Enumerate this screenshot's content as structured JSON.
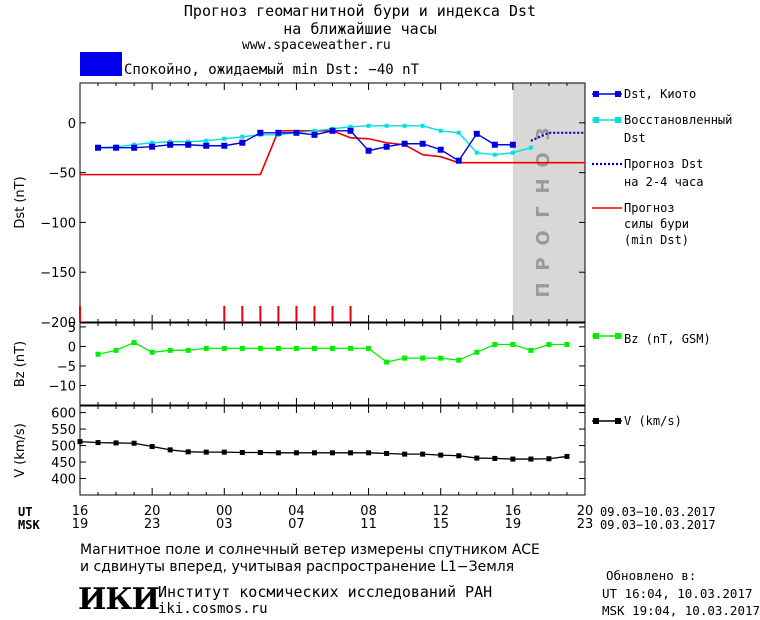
{
  "header": {
    "title_line1": "Прогноз геомагнитной бури и индекса Dst",
    "title_line2": "на ближайшие часы",
    "url": "www.spaceweather.ru",
    "status_text": "Спокойно, ожидаемый min Dst: −40 nT",
    "status_color": "#0000ee"
  },
  "legend": {
    "dst_kyoto": "Dst, Киото",
    "restored_1": "Восстановленный",
    "restored_2": "Dst",
    "forecast_1": "Прогноз Dst",
    "forecast_2": "на 2-4 часа",
    "storm_1": "Прогноз",
    "storm_2": "силы бури",
    "storm_3": "(min Dst)",
    "bz": "Bz (nT, GSM)",
    "v": "V (km/s)"
  },
  "forecast_band_label": "ПРОГНОЗ",
  "time_axis": {
    "ut_label": "UT",
    "msk_label": "MSK",
    "ut_ticks": [
      "16",
      "20",
      "00",
      "04",
      "08",
      "12",
      "16",
      "20"
    ],
    "msk_ticks": [
      "19",
      "23",
      "03",
      "07",
      "11",
      "15",
      "19",
      "23"
    ],
    "ut_range": "09.03−10.03.2017",
    "msk_range": "09.03−10.03.2017"
  },
  "footer": {
    "line1": "Магнитное поле и солнечный ветер измерены спутником ACE",
    "line2": "и сдвинуты вперед, учитывая распространение L1−Земля",
    "logo_text": "ИКИ",
    "institute": "Институт космических исследований РАН",
    "site": "iki.cosmos.ru",
    "updated_label": "Обновлено в:",
    "updated_ut": "UT   16:04, 10.03.2017",
    "updated_msk": "MSK 19:04, 10.03.2017"
  },
  "chart_data": [
    {
      "type": "line",
      "ylabel": "Dst (nT)",
      "ylim": [
        -200,
        40
      ],
      "yticks": [
        0,
        -50,
        -100,
        -150,
        -200
      ],
      "xlim": [
        0,
        28
      ],
      "x_unit": "hours since 16 UT 09.03.2017",
      "forecast_band": [
        24,
        28
      ],
      "series": [
        {
          "name": "Dst, Киото",
          "color": "#0000dd",
          "x": [
            1,
            2,
            3,
            4,
            5,
            6,
            7,
            8,
            9,
            10,
            11,
            12,
            13,
            14,
            15,
            16,
            17,
            18,
            19,
            20,
            21,
            22,
            23,
            24
          ],
          "values": [
            -25,
            -25,
            -25,
            -24,
            -22,
            -22,
            -23,
            -23,
            -20,
            -10,
            -10,
            -10,
            -12,
            -8,
            -8,
            -28,
            -24,
            -21,
            -21,
            -27,
            -38,
            -11,
            -22,
            -22
          ]
        },
        {
          "name": "Восстановленный Dst",
          "color": "#00e0e0",
          "x": [
            1,
            2,
            3,
            4,
            5,
            6,
            7,
            8,
            9,
            10,
            11,
            12,
            13,
            14,
            15,
            16,
            17,
            18,
            19,
            20,
            21,
            22,
            23,
            24,
            25
          ],
          "values": [
            -25,
            -24,
            -22,
            -20,
            -19,
            -19,
            -18,
            -16,
            -14,
            -12,
            -12,
            -10,
            -8,
            -6,
            -4,
            -3,
            -3,
            -3,
            -3,
            -8,
            -10,
            -30,
            -32,
            -30,
            -25
          ]
        },
        {
          "name": "Прогноз Dst на 2-4 часа",
          "color": "#0000cc",
          "x": [
            25,
            26,
            27,
            28
          ],
          "values": [
            -18,
            -10,
            -10,
            -10
          ]
        },
        {
          "name": "Прогноз силы бури (min Dst)",
          "color": "#ee0000",
          "x": [
            0,
            10,
            11,
            11.5,
            14,
            15,
            16,
            17,
            18,
            19,
            20,
            21,
            22,
            28
          ],
          "values": [
            -52,
            -52,
            -8,
            -8,
            -8,
            -15,
            -16,
            -20,
            -22,
            -32,
            -34,
            -40,
            -40,
            -40
          ]
        }
      ],
      "storm_markers_x": [
        0,
        8,
        9,
        10,
        11,
        12,
        13,
        14,
        15
      ]
    },
    {
      "type": "line",
      "ylabel": "Bz (nT)",
      "ylim": [
        -15,
        6
      ],
      "yticks": [
        5,
        0,
        -5,
        -10
      ],
      "xlim": [
        0,
        28
      ],
      "series": [
        {
          "name": "Bz (nT, GSM)",
          "color": "#00ee00",
          "x": [
            1,
            2,
            3,
            4,
            5,
            6,
            7,
            8,
            9,
            10,
            11,
            12,
            13,
            14,
            15,
            16,
            17,
            18,
            19,
            20,
            21,
            22,
            23,
            24,
            25,
            26,
            27
          ],
          "values": [
            -2,
            -1,
            1,
            -1.5,
            -1,
            -1,
            -0.5,
            -0.5,
            -0.5,
            -0.5,
            -0.5,
            -0.5,
            -0.5,
            -0.5,
            -0.5,
            -0.5,
            -4,
            -3,
            -3,
            -3,
            -3.5,
            -1.5,
            0.5,
            0.5,
            -1,
            0.5,
            0.5
          ]
        }
      ]
    },
    {
      "type": "line",
      "ylabel": "V (km/s)",
      "ylim": [
        350,
        620
      ],
      "yticks": [
        600,
        550,
        500,
        450,
        400
      ],
      "xlim": [
        0,
        28
      ],
      "series": [
        {
          "name": "V (km/s)",
          "color": "#000000",
          "x": [
            0,
            1,
            2,
            3,
            4,
            5,
            6,
            7,
            8,
            9,
            10,
            11,
            12,
            13,
            14,
            15,
            16,
            17,
            18,
            19,
            20,
            21,
            22,
            23,
            24,
            25,
            26,
            27
          ],
          "values": [
            512,
            509,
            508,
            507,
            497,
            487,
            481,
            480,
            480,
            479,
            479,
            478,
            478,
            478,
            478,
            478,
            478,
            476,
            474,
            474,
            471,
            469,
            462,
            461,
            459,
            459,
            460,
            467
          ]
        }
      ]
    }
  ]
}
